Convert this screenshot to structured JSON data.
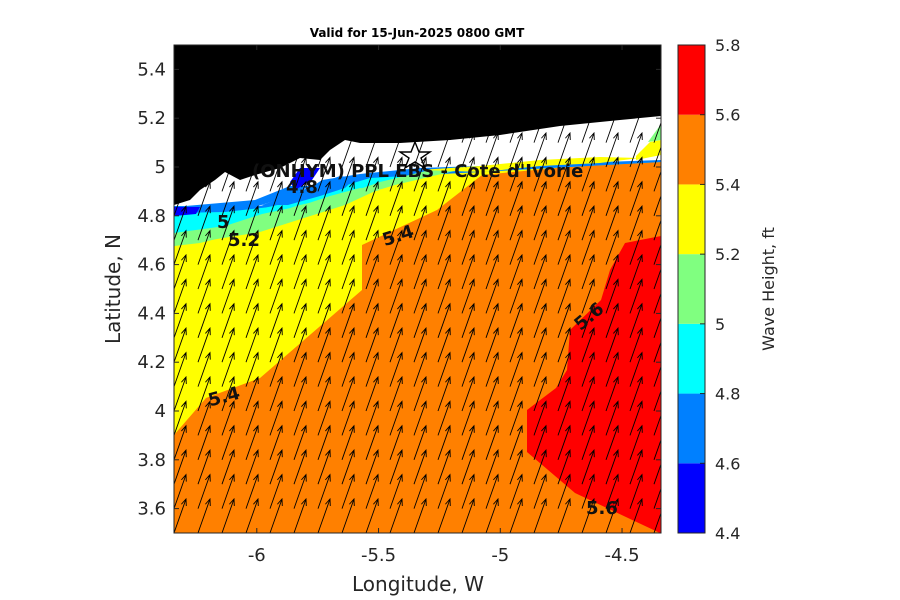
{
  "title": "Valid for 15-Jun-2025 0800 GMT",
  "site_label": "(ONHYM) PPL EBS  - Cote d'Ivorie",
  "colors": {
    "land": "#000000",
    "bin_4_4_4_6": "#0000ff",
    "bin_4_6_4_8": "#0080ff",
    "bin_4_8_5_0": "#00ffff",
    "bin_5_0_5_2": "#80ff80",
    "bin_5_2_5_4": "#ffff00",
    "bin_5_4_5_6": "#ff8000",
    "bin_5_6_5_8": "#ff0000"
  },
  "chart_data": {
    "type": "heatmap",
    "title": "Valid for 15-Jun-2025 0800 GMT",
    "xlabel": "Longitude, W",
    "ylabel": "Latitude, N",
    "xlim": [
      -6.34,
      -4.34
    ],
    "ylim": [
      3.5,
      5.5
    ],
    "xticks": [
      -6,
      -5.5,
      -5,
      -4.5
    ],
    "xtick_labels": [
      "-6",
      "-5.5",
      "-5",
      "-4.5"
    ],
    "yticks": [
      3.6,
      3.8,
      4.0,
      4.2,
      4.4,
      4.6,
      4.8,
      5.0,
      5.2,
      5.4
    ],
    "ytick_labels": [
      "3.6",
      "3.8",
      "4",
      "4.2",
      "4.4",
      "4.6",
      "4.8",
      "5",
      "5.2",
      "5.4"
    ],
    "colorbar": {
      "label": "Wave Height, ft",
      "levels": [
        4.4,
        4.6,
        4.8,
        5.0,
        5.2,
        5.4,
        5.6,
        5.8
      ],
      "tick_labels": [
        "4.4",
        "4.6",
        "4.8",
        "5",
        "5.2",
        "5.4",
        "5.6",
        "5.8"
      ],
      "colors": [
        "#0000ff",
        "#0080ff",
        "#00ffff",
        "#80ff80",
        "#ffff00",
        "#ff8000",
        "#ff0000"
      ]
    },
    "contour_labels": [
      "4.8",
      "5",
      "5.2",
      "5.4",
      "5.4",
      "5.6",
      "5.6"
    ],
    "site_marker": {
      "symbol": "star",
      "lon": -5.35,
      "lat": 5.04
    },
    "wave_direction": "toward north-northeast",
    "grid": false
  }
}
